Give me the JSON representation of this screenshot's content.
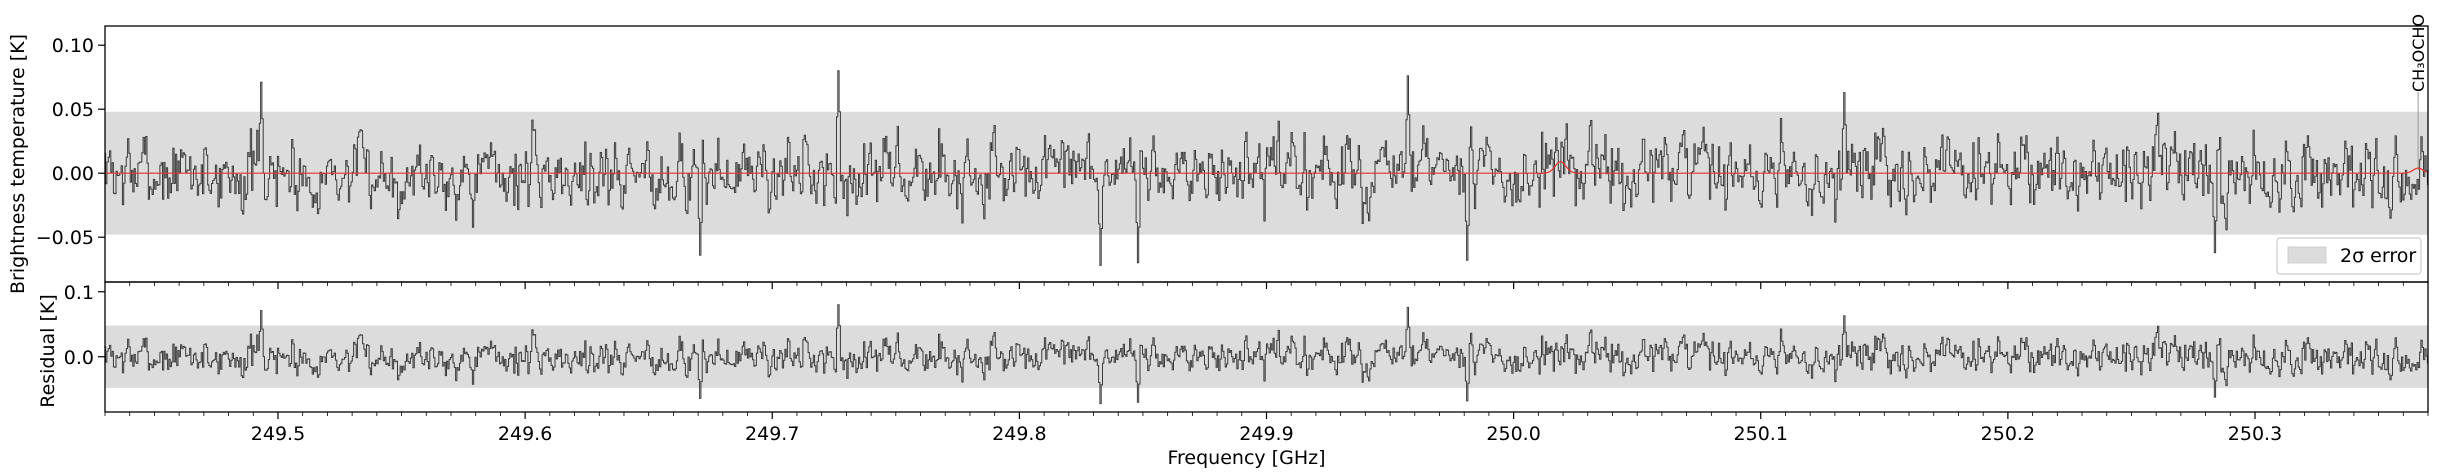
{
  "chart_data": {
    "type": "line",
    "x_axis": {
      "label": "Frequency [GHz]",
      "range": [
        249.43,
        250.37
      ],
      "ticks": [
        249.5,
        249.6,
        249.7,
        249.8,
        249.9,
        250.0,
        250.1,
        250.2,
        250.3
      ],
      "tick_labels": [
        "249.5",
        "249.6",
        "249.7",
        "249.8",
        "249.9",
        "250.0",
        "250.1",
        "250.2",
        "250.3"
      ]
    },
    "panels": [
      {
        "id": "spectrum",
        "ylabel": "Brightness temperature [K]",
        "ylim": [
          -0.085,
          0.115
        ],
        "yticks": [
          -0.05,
          0.0,
          0.05,
          0.1
        ],
        "ytick_labels": [
          "−0.05",
          "0.00",
          "0.05",
          "0.10"
        ],
        "error_band": [
          -0.048,
          0.048
        ],
        "series": [
          {
            "name": "",
            "color": "#3a3a3a",
            "seed": 7,
            "noise_sigma": 0.024,
            "anchor_points": [
              [
                249.493,
                0.071
              ],
              [
                249.727,
                0.08
              ],
              [
                249.957,
                0.076
              ],
              [
                249.833,
                -0.072
              ],
              [
                249.848,
                -0.07
              ],
              [
                249.981,
                -0.068
              ],
              [
                249.671,
                -0.064
              ],
              [
                250.134,
                0.063
              ],
              [
                250.284,
                -0.062
              ]
            ]
          },
          {
            "name": "",
            "color": "#e8302a",
            "model": "gaussian",
            "peaks": [
              {
                "x": 250.019,
                "amp": 0.009,
                "width": 0.0022
              },
              {
                "x": 250.366,
                "amp": 0.004,
                "width": 0.002
              }
            ]
          }
        ],
        "legend": {
          "placement": "lower-right",
          "entries": [
            {
              "label": "2σ error",
              "color": "#dcdcdc"
            }
          ]
        },
        "annotations": [
          {
            "text": "CH₃OCHO",
            "x": 250.366,
            "color": "#999999"
          }
        ]
      },
      {
        "id": "residual",
        "ylabel": "Residual [K]",
        "ylim": [
          -0.085,
          0.115
        ],
        "yticks": [
          0.0,
          0.1
        ],
        "ytick_labels": [
          "0.0",
          "0.1"
        ],
        "error_band": [
          -0.048,
          0.048
        ],
        "series": [
          {
            "name": "",
            "color": "#3a3a3a",
            "seed": 7,
            "derived_from": "spectrum",
            "subtract_model": true
          }
        ]
      }
    ],
    "grid": false
  }
}
